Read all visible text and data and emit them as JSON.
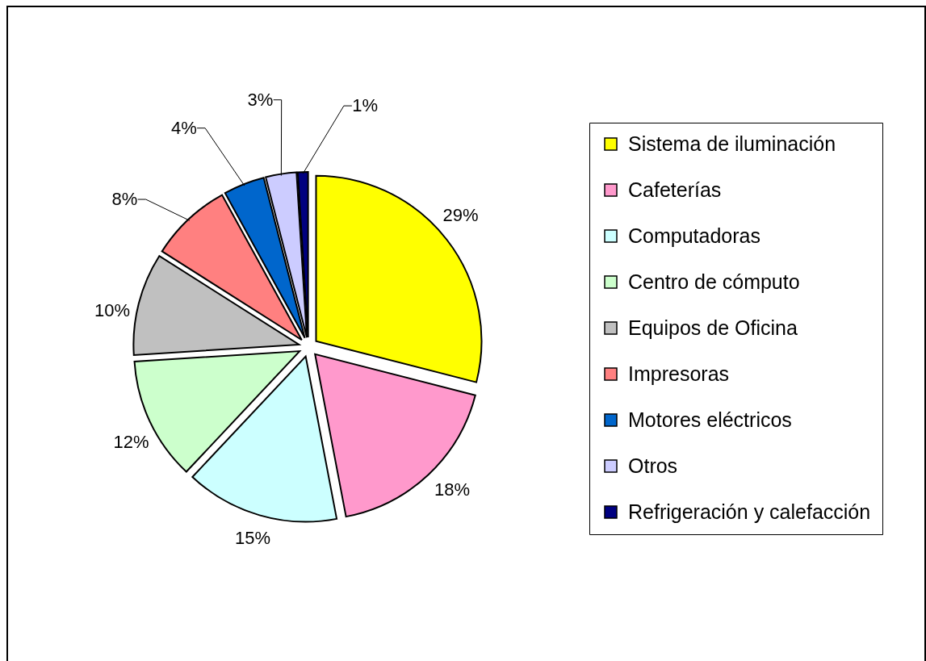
{
  "chart_data": {
    "type": "pie",
    "categories": [
      "Sistema de iluminación",
      "Cafeterías",
      "Computadoras",
      "Centro de cómputo",
      "Equipos de Oficina",
      "Impresoras",
      "Motores eléctricos",
      "Otros",
      "Refrigeración y calefacción"
    ],
    "values": [
      29,
      18,
      15,
      12,
      10,
      8,
      4,
      3,
      1
    ],
    "colors": [
      "#ffff00",
      "#ff99cc",
      "#ccffff",
      "#ccffcc",
      "#c0c0c0",
      "#ff8080",
      "#0066cc",
      "#ccccff",
      "#000080"
    ],
    "value_labels": [
      "29%",
      "18%",
      "15%",
      "12%",
      "10%",
      "8%",
      "4%",
      "3%",
      "1%"
    ],
    "legend": "right"
  }
}
